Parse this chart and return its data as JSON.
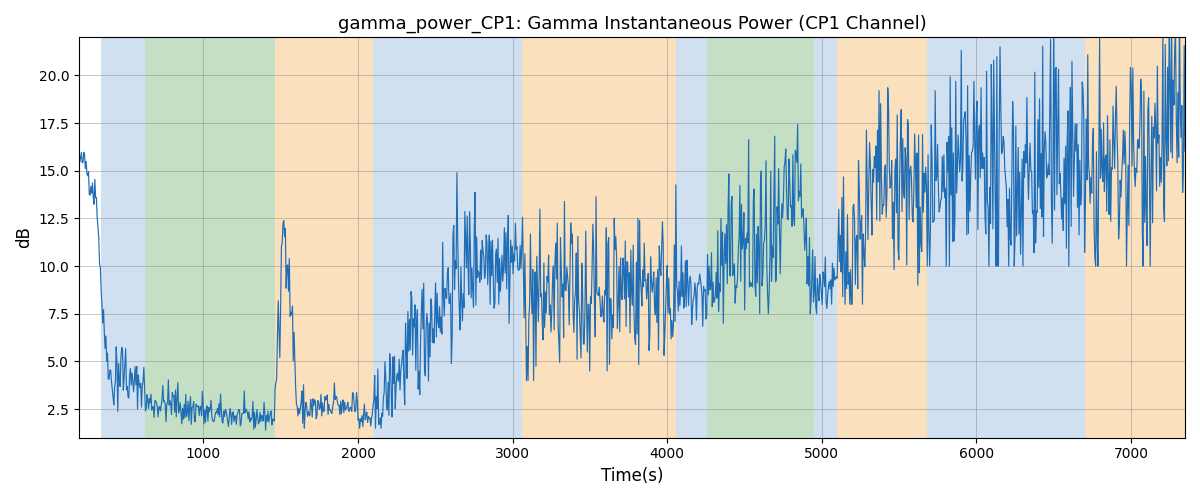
{
  "title": "gamma_power_CP1: Gamma Instantaneous Power (CP1 Channel)",
  "xlabel": "Time(s)",
  "ylabel": "dB",
  "xlim": [
    195,
    7350
  ],
  "ylim": [
    1.0,
    22.0
  ],
  "yticks": [
    2.5,
    5.0,
    7.5,
    10.0,
    12.5,
    15.0,
    17.5,
    20.0
  ],
  "xticks": [
    1000,
    2000,
    3000,
    4000,
    5000,
    6000,
    7000
  ],
  "line_color": "#1f6db5",
  "line_width": 0.85,
  "bg_bands": [
    {
      "xmin": 340,
      "xmax": 620,
      "color": "#b8d0e8",
      "alpha": 0.65
    },
    {
      "xmin": 620,
      "xmax": 1460,
      "color": "#9ecb9e",
      "alpha": 0.6
    },
    {
      "xmin": 1460,
      "xmax": 2100,
      "color": "#f9d09a",
      "alpha": 0.65
    },
    {
      "xmin": 2100,
      "xmax": 2820,
      "color": "#b8d0e8",
      "alpha": 0.65
    },
    {
      "xmin": 2820,
      "xmax": 3060,
      "color": "#b8d0e8",
      "alpha": 0.65
    },
    {
      "xmin": 3060,
      "xmax": 4060,
      "color": "#f9d09a",
      "alpha": 0.65
    },
    {
      "xmin": 4060,
      "xmax": 4260,
      "color": "#b8d0e8",
      "alpha": 0.65
    },
    {
      "xmin": 4260,
      "xmax": 4950,
      "color": "#9ecb9e",
      "alpha": 0.6
    },
    {
      "xmin": 4950,
      "xmax": 5100,
      "color": "#b8d0e8",
      "alpha": 0.65
    },
    {
      "xmin": 5100,
      "xmax": 5680,
      "color": "#f9d09a",
      "alpha": 0.65
    },
    {
      "xmin": 5680,
      "xmax": 6700,
      "color": "#b8d0e8",
      "alpha": 0.65
    },
    {
      "xmin": 6700,
      "xmax": 7350,
      "color": "#f9d09a",
      "alpha": 0.65
    }
  ],
  "seed": 42
}
